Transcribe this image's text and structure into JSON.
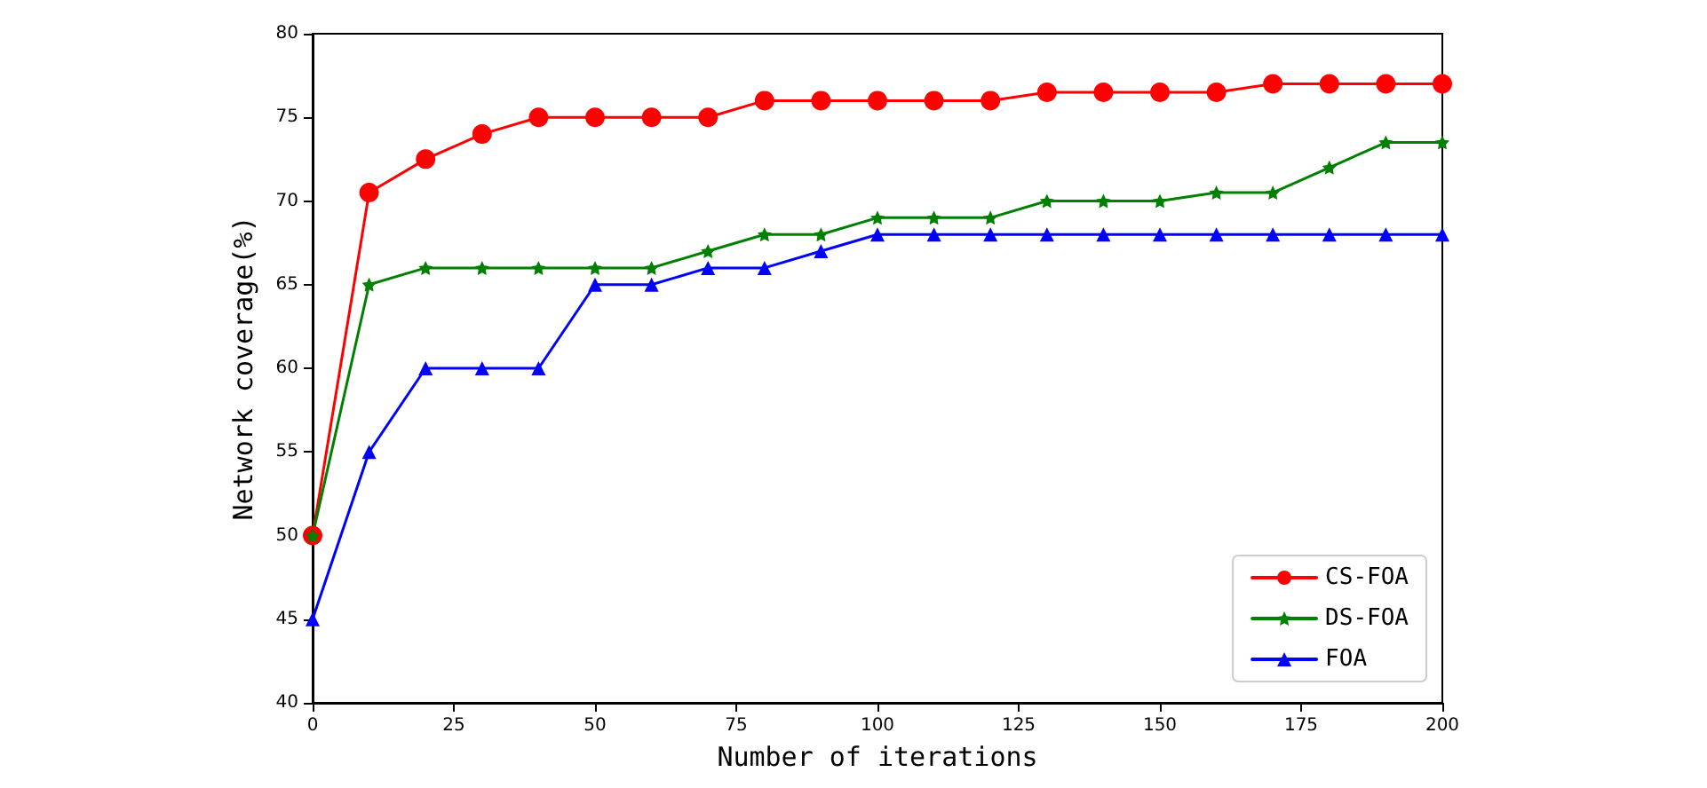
{
  "chart_data": {
    "type": "line",
    "xlabel": "Number of iterations",
    "ylabel": "Network coverage(%)",
    "x": [
      0,
      10,
      20,
      30,
      40,
      50,
      60,
      70,
      80,
      90,
      100,
      110,
      120,
      130,
      140,
      150,
      160,
      170,
      180,
      190,
      200
    ],
    "xlim": [
      0,
      200
    ],
    "xticks": [
      0,
      25,
      50,
      75,
      100,
      125,
      150,
      175,
      200
    ],
    "ylim": [
      40,
      80
    ],
    "yticks": [
      40,
      45,
      50,
      55,
      60,
      65,
      70,
      75,
      80
    ],
    "grid": false,
    "legend": "bottom right",
    "line_style": "solid",
    "series": [
      {
        "name": "CS-FOA",
        "color": "#ff0000",
        "marker": "circle",
        "values": [
          50,
          70.5,
          72.5,
          74,
          75,
          75,
          75,
          75,
          76,
          76,
          76,
          76,
          76,
          76.5,
          76.5,
          76.5,
          76.5,
          77,
          77,
          77,
          77
        ]
      },
      {
        "name": "DS-FOA",
        "color": "#008000",
        "marker": "star",
        "values": [
          50,
          65,
          66,
          66,
          66,
          66,
          66,
          67,
          68,
          68,
          69,
          69,
          69,
          70,
          70,
          70,
          70.5,
          70.5,
          72,
          73.5,
          73.5
        ]
      },
      {
        "name": "FOA",
        "color": "#0000ff",
        "marker": "triangle",
        "values": [
          45,
          55,
          60,
          60,
          60,
          65,
          65,
          66,
          66,
          67,
          68,
          68,
          68,
          68,
          68,
          68,
          68,
          68,
          68,
          68,
          68
        ]
      }
    ]
  }
}
